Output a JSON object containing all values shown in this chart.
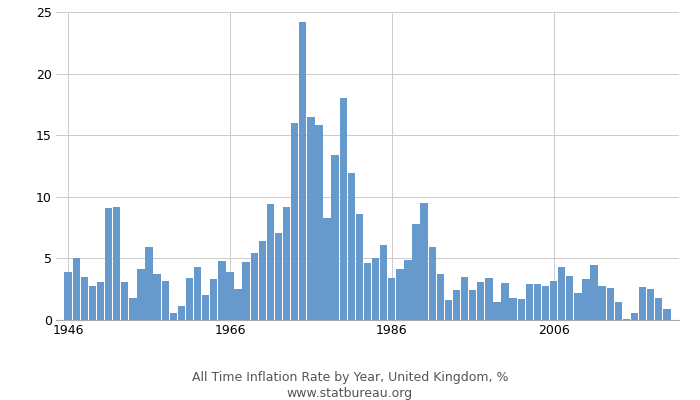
{
  "years": [
    1946,
    1947,
    1948,
    1949,
    1950,
    1951,
    1952,
    1953,
    1954,
    1955,
    1956,
    1957,
    1958,
    1959,
    1960,
    1961,
    1962,
    1963,
    1964,
    1965,
    1966,
    1967,
    1968,
    1969,
    1970,
    1971,
    1972,
    1973,
    1974,
    1975,
    1976,
    1977,
    1978,
    1979,
    1980,
    1981,
    1982,
    1983,
    1984,
    1985,
    1986,
    1987,
    1988,
    1989,
    1990,
    1991,
    1992,
    1993,
    1994,
    1995,
    1996,
    1997,
    1998,
    1999,
    2000,
    2001,
    2002,
    2003,
    2004,
    2005,
    2006,
    2007,
    2008,
    2009,
    2010,
    2011,
    2012,
    2013,
    2014,
    2015,
    2016,
    2017,
    2018,
    2019,
    2020
  ],
  "values": [
    3.9,
    5.0,
    3.5,
    2.8,
    3.1,
    9.1,
    9.2,
    3.1,
    1.8,
    4.1,
    5.9,
    3.7,
    3.2,
    0.6,
    1.1,
    3.4,
    4.3,
    2.0,
    3.3,
    4.8,
    3.9,
    2.5,
    4.7,
    5.4,
    6.4,
    9.4,
    7.1,
    9.2,
    16.0,
    24.2,
    16.5,
    15.8,
    8.3,
    13.4,
    18.0,
    11.9,
    8.6,
    4.6,
    5.0,
    6.1,
    3.4,
    4.1,
    4.9,
    7.8,
    9.5,
    5.9,
    3.7,
    1.6,
    2.4,
    3.5,
    2.4,
    3.1,
    3.4,
    1.5,
    3.0,
    1.8,
    1.7,
    2.9,
    2.9,
    2.8,
    3.2,
    4.3,
    3.6,
    2.2,
    3.3,
    4.5,
    2.8,
    2.6,
    1.5,
    0.1,
    0.6,
    2.7,
    2.5,
    1.8,
    0.9
  ],
  "bar_color": "#6699cc",
  "title_line1": "All Time Inflation Rate by Year, United Kingdom, %",
  "title_line2": "www.statbureau.org",
  "title_fontsize": 9,
  "url_fontsize": 9,
  "ylim": [
    0,
    25
  ],
  "yticks": [
    0,
    5,
    10,
    15,
    20,
    25
  ],
  "xtick_years": [
    1946,
    1966,
    1986,
    2006
  ],
  "background_color": "#ffffff",
  "grid_color": "#cccccc",
  "fig_width": 7.0,
  "fig_height": 4.0,
  "dpi": 100
}
